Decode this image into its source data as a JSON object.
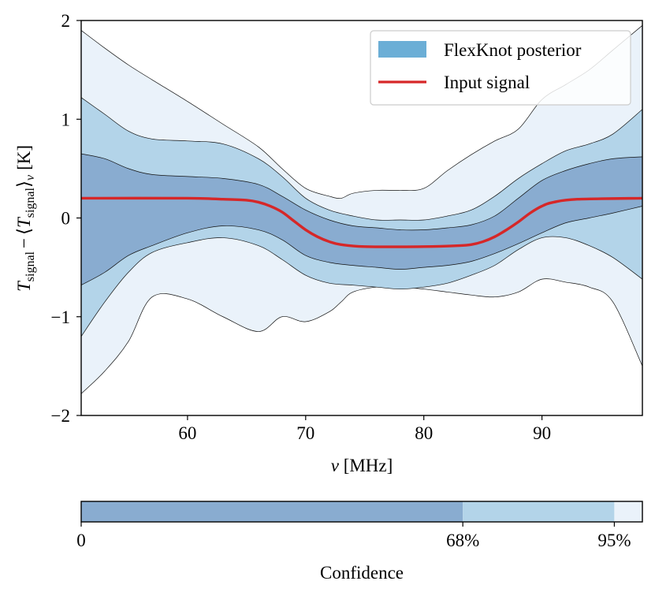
{
  "chart_data": {
    "type": "line",
    "xlabel_symbol": "ν",
    "xlabel_unit": "[MHz]",
    "ylabel": {
      "main": "T",
      "sub": "signal",
      "minus": "−",
      "open": "⟨",
      "close": "⟩",
      "nu": "ν",
      "unit": "[K]"
    },
    "xlim": [
      51,
      98.5
    ],
    "ylim": [
      -2,
      2
    ],
    "xticks": [
      60,
      70,
      80,
      90
    ],
    "xtick_labels": [
      "60",
      "70",
      "80",
      "90"
    ],
    "yticks": [
      -2,
      -1,
      0,
      1,
      2
    ],
    "ytick_labels": [
      "−2",
      "−1",
      "0",
      "1",
      "2"
    ],
    "legend": {
      "position": "top-right",
      "entries": [
        {
          "label": "FlexKnot posterior",
          "color": "#6baed6",
          "kind": "patch"
        },
        {
          "label": "Input signal",
          "color": "#d62728",
          "kind": "line"
        }
      ]
    },
    "series": [
      {
        "name": "Input signal",
        "x": [
          51,
          60,
          63,
          65,
          66,
          67,
          68,
          69,
          70,
          71,
          72,
          73,
          75,
          80,
          83,
          84,
          85,
          86,
          87,
          88,
          89,
          90,
          91,
          93,
          98.5
        ],
        "y": [
          0.2,
          0.2,
          0.19,
          0.18,
          0.16,
          0.12,
          0.06,
          -0.03,
          -0.12,
          -0.19,
          -0.24,
          -0.27,
          -0.29,
          -0.29,
          -0.28,
          -0.27,
          -0.24,
          -0.19,
          -0.12,
          -0.04,
          0.05,
          0.12,
          0.16,
          0.19,
          0.2
        ]
      }
    ],
    "bands": [
      {
        "name": "95–100% confidence",
        "color": "#eaf2fa",
        "x": [
          51,
          53,
          55,
          57,
          60,
          63,
          66,
          68,
          70,
          72,
          73,
          74,
          76,
          78,
          80,
          82,
          84,
          86,
          88,
          90,
          92,
          94,
          96,
          98.5
        ],
        "upper": [
          1.9,
          1.72,
          1.55,
          1.4,
          1.18,
          0.95,
          0.72,
          0.5,
          0.3,
          0.22,
          0.2,
          0.25,
          0.28,
          0.28,
          0.3,
          0.48,
          0.64,
          0.78,
          0.9,
          1.2,
          1.35,
          1.5,
          1.7,
          1.95
        ],
        "lower": [
          -1.78,
          -1.55,
          -1.25,
          -0.8,
          -0.82,
          -1.0,
          -1.15,
          -1.0,
          -1.05,
          -0.95,
          -0.85,
          -0.75,
          -0.7,
          -0.7,
          -0.72,
          -0.75,
          -0.78,
          -0.8,
          -0.75,
          -0.62,
          -0.65,
          -0.7,
          -0.85,
          -1.5
        ]
      },
      {
        "name": "68–95% confidence",
        "color": "#b3d4e9",
        "x": [
          51,
          53,
          55,
          57,
          60,
          63,
          66,
          68,
          70,
          72,
          74,
          76,
          78,
          80,
          82,
          84,
          86,
          88,
          90,
          92,
          94,
          96,
          98.5
        ],
        "upper": [
          1.22,
          1.05,
          0.88,
          0.8,
          0.78,
          0.75,
          0.6,
          0.42,
          0.2,
          0.08,
          0.02,
          -0.02,
          -0.02,
          -0.02,
          0.02,
          0.08,
          0.22,
          0.4,
          0.55,
          0.68,
          0.75,
          0.85,
          1.1
        ],
        "lower": [
          -1.2,
          -0.85,
          -0.55,
          -0.35,
          -0.25,
          -0.2,
          -0.28,
          -0.42,
          -0.58,
          -0.66,
          -0.68,
          -0.7,
          -0.72,
          -0.7,
          -0.66,
          -0.58,
          -0.48,
          -0.32,
          -0.2,
          -0.2,
          -0.28,
          -0.4,
          -0.62
        ]
      },
      {
        "name": "0–68% confidence",
        "color": "#89acd0",
        "x": [
          51,
          53,
          55,
          57,
          60,
          63,
          66,
          68,
          70,
          72,
          74,
          76,
          78,
          80,
          82,
          84,
          86,
          88,
          90,
          92,
          94,
          96,
          98.5
        ],
        "upper": [
          0.65,
          0.6,
          0.5,
          0.44,
          0.42,
          0.4,
          0.34,
          0.22,
          0.08,
          -0.02,
          -0.08,
          -0.1,
          -0.12,
          -0.12,
          -0.1,
          -0.07,
          0.02,
          0.2,
          0.38,
          0.48,
          0.55,
          0.6,
          0.62
        ],
        "lower": [
          -0.68,
          -0.55,
          -0.38,
          -0.28,
          -0.15,
          -0.08,
          -0.12,
          -0.22,
          -0.38,
          -0.45,
          -0.48,
          -0.5,
          -0.52,
          -0.5,
          -0.48,
          -0.44,
          -0.36,
          -0.26,
          -0.15,
          -0.05,
          0.0,
          0.05,
          0.12
        ]
      }
    ],
    "colorbar": {
      "label": "Confidence",
      "ticks": [
        0,
        68,
        95
      ],
      "tick_labels": [
        "0",
        "68%",
        "95%"
      ],
      "segments": [
        {
          "from": 0,
          "to": 68,
          "color": "#89acd0"
        },
        {
          "from": 68,
          "to": 95,
          "color": "#b3d4e9"
        },
        {
          "from": 95,
          "to": 100,
          "color": "#eaf2fa"
        }
      ]
    }
  }
}
